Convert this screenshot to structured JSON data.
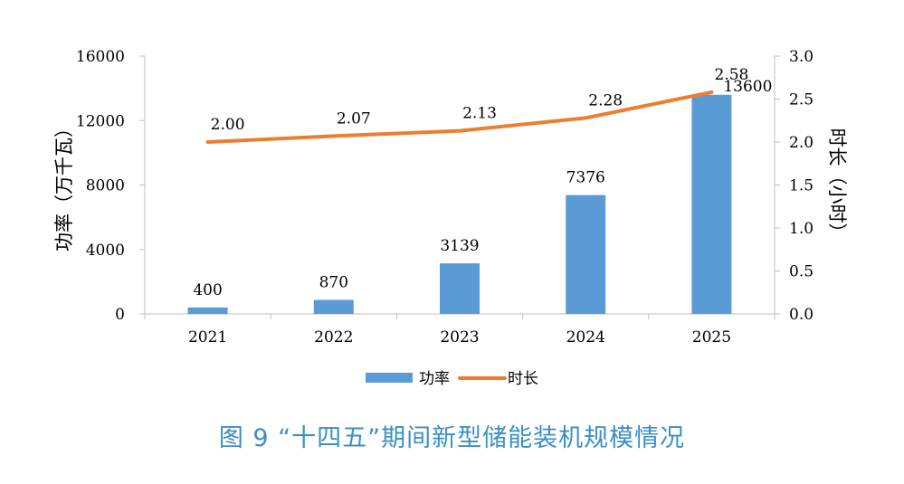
{
  "caption": "图 9  “十四五”期间新型储能装机规模情况",
  "chart_data": {
    "type": "bar+line",
    "categories": [
      "2021",
      "2022",
      "2023",
      "2024",
      "2025"
    ],
    "y_left": {
      "label": "功率（万千瓦）",
      "ticks": [
        "0",
        "4000",
        "8000",
        "12000",
        "16000"
      ],
      "range": [
        0,
        16000
      ]
    },
    "y_right": {
      "label": "时长（小时）",
      "ticks": [
        "0.0",
        "0.5",
        "1.0",
        "1.5",
        "2.0",
        "2.5",
        "3.0"
      ],
      "range": [
        0,
        3
      ]
    },
    "series": [
      {
        "name": "功率",
        "type": "bar",
        "axis": "left",
        "color": "#5b9bd5",
        "values": [
          400,
          870,
          3139,
          7376,
          13600
        ],
        "labels": [
          "400",
          "870",
          "3139",
          "7376",
          "13600"
        ]
      },
      {
        "name": "时长",
        "type": "line",
        "axis": "right",
        "color": "#ed7d31",
        "values": [
          2.0,
          2.07,
          2.13,
          2.28,
          2.58
        ],
        "labels": [
          "2.00",
          "2.07",
          "2.13",
          "2.28",
          "2.58"
        ]
      }
    ],
    "legend_position": "bottom",
    "grid": false
  }
}
